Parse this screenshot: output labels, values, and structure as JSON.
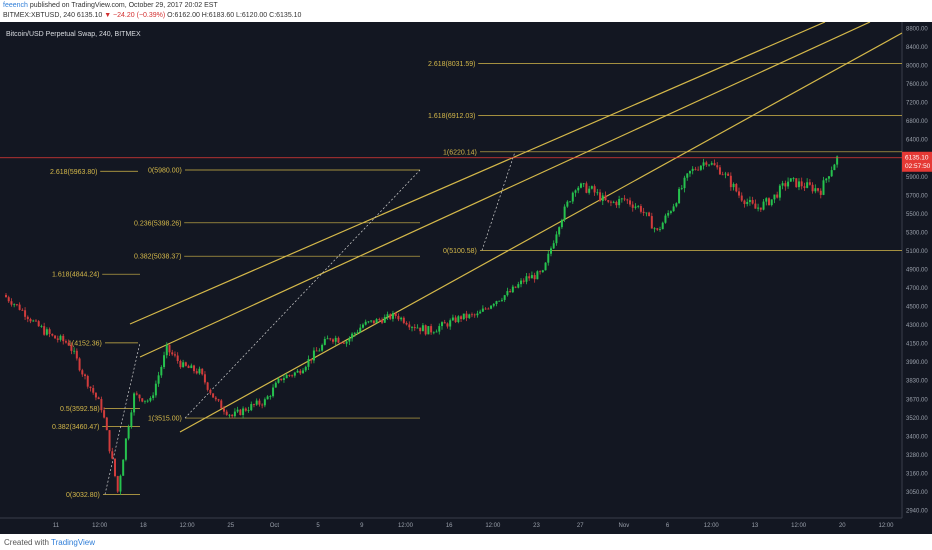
{
  "header": {
    "author": "feeench",
    "published": "published on TradingView.com, October 29, 2017 20:02 EST",
    "symbol": "BITMEX:XBTUSD, 240",
    "last": "6135.10",
    "change": "▼ −24.20 (−0.39%)",
    "ohlc": "O:6162.00 H:6183.60 L:6120.00 C:6135.10"
  },
  "footer": {
    "created": "Created with",
    "brand": "TradingView"
  },
  "colors": {
    "bg": "#131722",
    "fib": "#d4b84a",
    "up": "#26c24e",
    "down": "#d13c3c",
    "price": "#e53935",
    "grid": "#2a2e39",
    "axis": "#9aa0ab"
  },
  "chart_data": {
    "type": "candlestick",
    "title": "Bitcoin/USD Perpetual Swap, 240, BITMEX",
    "y_ticks": [
      2940,
      3050,
      3160,
      3280,
      3400,
      3520,
      3670,
      3830,
      3990,
      4150,
      4300,
      4500,
      4700,
      4900,
      5100,
      5300,
      5500,
      5700,
      5900,
      6135.1,
      6400,
      6800,
      7200,
      7600,
      8000,
      8400,
      8800
    ],
    "x_ticks": [
      "11",
      "12:00",
      "18",
      "12:00",
      "25",
      "Oct",
      "5",
      "9",
      "12:00",
      "16",
      "12:00",
      "23",
      "27",
      "Nov",
      "6",
      "12:00",
      "13",
      "12:00",
      "20",
      "12:00"
    ],
    "current_price": {
      "value": 6135.1,
      "label": "6135.10",
      "countdown": "02:57:50"
    },
    "fib_levels": [
      {
        "label": "2.618(8031.59)",
        "value": 8031.59
      },
      {
        "label": "1.618(6912.03)",
        "value": 6912.03
      },
      {
        "label": "1(6220.14)",
        "value": 6220.14
      },
      {
        "label": "0(5100.58)",
        "value": 5100.58
      },
      {
        "label": "0(5980.00)",
        "value": 5980.0
      },
      {
        "label": "2.618(5963.80)",
        "value": 5963.8
      },
      {
        "label": "0.236(5398.26)",
        "value": 5398.26
      },
      {
        "label": "0.382(5038.37)",
        "value": 5038.37
      },
      {
        "label": "1.618(4844.24)",
        "value": 4844.24
      },
      {
        "label": "1(4152.36)",
        "value": 4152.36
      },
      {
        "label": "0.5(3592.58)",
        "value": 3592.58
      },
      {
        "label": "0.382(3460.47)",
        "value": 3460.47
      },
      {
        "label": "1(3515.00)",
        "value": 3515.0
      },
      {
        "label": "0(3032.80)",
        "value": 3032.8
      }
    ],
    "ohlc_path": [
      {
        "d": "Sep 08",
        "v": 4620
      },
      {
        "d": "Sep 09",
        "v": 4480
      },
      {
        "d": "Sep 10",
        "v": 4300
      },
      {
        "d": "Sep 11",
        "v": 4200
      },
      {
        "d": "Sep 12",
        "v": 4150
      },
      {
        "d": "Sep 13",
        "v": 3850
      },
      {
        "d": "Sep 14",
        "v": 3600
      },
      {
        "d": "Sep 15",
        "v": 3050
      },
      {
        "d": "Sep 16",
        "v": 3700
      },
      {
        "d": "Sep 17",
        "v": 3650
      },
      {
        "d": "Sep 18",
        "v": 4100
      },
      {
        "d": "Sep 19",
        "v": 3950
      },
      {
        "d": "Sep 20",
        "v": 3900
      },
      {
        "d": "Sep 21",
        "v": 3650
      },
      {
        "d": "Sep 22",
        "v": 3530
      },
      {
        "d": "Sep 23",
        "v": 3600
      },
      {
        "d": "Sep 24",
        "v": 3650
      },
      {
        "d": "Sep 25",
        "v": 3850
      },
      {
        "d": "Sep 26",
        "v": 3900
      },
      {
        "d": "Sep 27",
        "v": 4050
      },
      {
        "d": "Sep 28",
        "v": 4200
      },
      {
        "d": "Sep 29",
        "v": 4170
      },
      {
        "d": "Sep 30",
        "v": 4300
      },
      {
        "d": "Oct 01",
        "v": 4350
      },
      {
        "d": "Oct 02",
        "v": 4400
      },
      {
        "d": "Oct 03",
        "v": 4300
      },
      {
        "d": "Oct 04",
        "v": 4250
      },
      {
        "d": "Oct 05",
        "v": 4300
      },
      {
        "d": "Oct 06",
        "v": 4380
      },
      {
        "d": "Oct 07",
        "v": 4400
      },
      {
        "d": "Oct 08",
        "v": 4550
      },
      {
        "d": "Oct 09",
        "v": 4650
      },
      {
        "d": "Oct 10",
        "v": 4800
      },
      {
        "d": "Oct 11",
        "v": 4850
      },
      {
        "d": "Oct 12",
        "v": 5400
      },
      {
        "d": "Oct 13",
        "v": 5800
      },
      {
        "d": "Oct 14",
        "v": 5750
      },
      {
        "d": "Oct 15",
        "v": 5600
      },
      {
        "d": "Oct 16",
        "v": 5650
      },
      {
        "d": "Oct 17",
        "v": 5550
      },
      {
        "d": "Oct 18",
        "v": 5300
      },
      {
        "d": "Oct 19",
        "v": 5600
      },
      {
        "d": "Oct 20",
        "v": 5950
      },
      {
        "d": "Oct 21",
        "v": 6100
      },
      {
        "d": "Oct 22",
        "v": 5950
      },
      {
        "d": "Oct 23",
        "v": 5700
      },
      {
        "d": "Oct 24",
        "v": 5550
      },
      {
        "d": "Oct 25",
        "v": 5650
      },
      {
        "d": "Oct 26",
        "v": 5850
      },
      {
        "d": "Oct 27",
        "v": 5800
      },
      {
        "d": "Oct 28",
        "v": 5750
      },
      {
        "d": "Oct 29",
        "v": 6135
      }
    ]
  }
}
